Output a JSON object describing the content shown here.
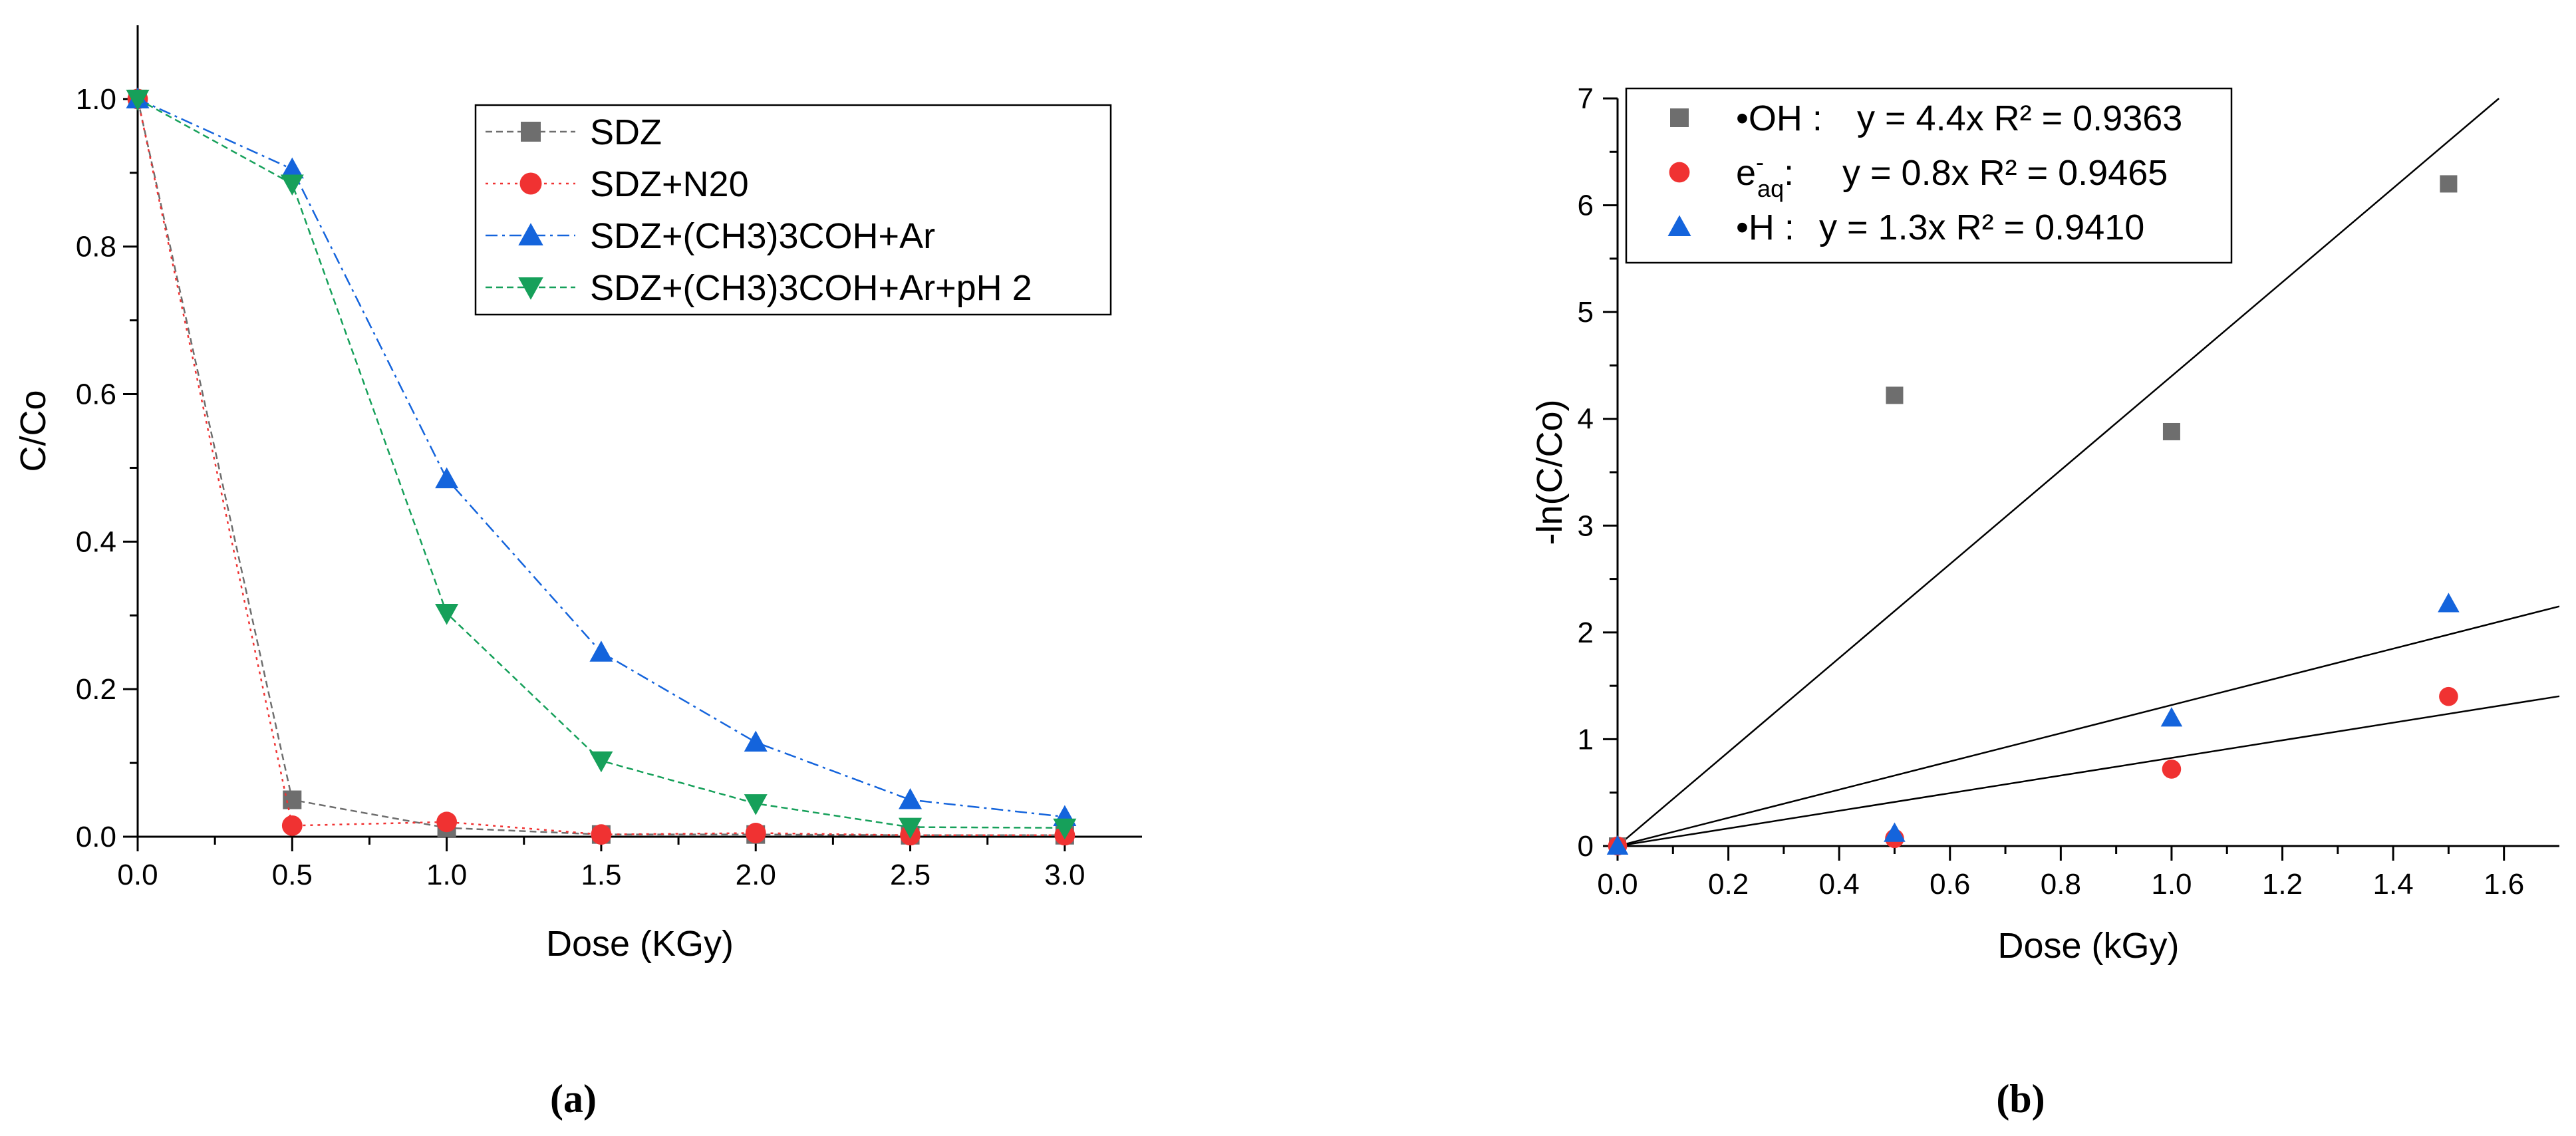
{
  "chart_data": [
    {
      "panel_label": "(a)",
      "type": "line",
      "xlabel": "Dose (KGy)",
      "ylabel": "C/Co",
      "xlim": [
        0,
        3.25
      ],
      "ylim": [
        0,
        1.1
      ],
      "xticks": [
        "0.0",
        "0.5",
        "1.0",
        "1.5",
        "2.0",
        "2.5",
        "3.0"
      ],
      "yticks": [
        "0.0",
        "0.2",
        "0.4",
        "0.6",
        "0.8",
        "1.0"
      ],
      "legend_position": "top-right",
      "series": [
        {
          "name": "SDZ",
          "color": "#6e6e6e",
          "marker": "square",
          "x": [
            0,
            0.5,
            1.0,
            1.5,
            2.0,
            2.5,
            3.0
          ],
          "y": [
            1.0,
            0.05,
            0.012,
            0.003,
            0.003,
            0.002,
            0.002
          ]
        },
        {
          "name": "SDZ+N20",
          "color": "#f03232",
          "marker": "circle",
          "x": [
            0,
            0.5,
            1.0,
            1.5,
            2.0,
            2.5,
            3.0
          ],
          "y": [
            1.0,
            0.015,
            0.02,
            0.003,
            0.005,
            0.002,
            0.002
          ]
        },
        {
          "name": "SDZ+(CH3)3COH+Ar",
          "color": "#1464dc",
          "marker": "triangle-up",
          "x": [
            0,
            0.5,
            1.0,
            1.5,
            2.0,
            2.5,
            3.0
          ],
          "y": [
            1.0,
            0.905,
            0.485,
            0.25,
            0.128,
            0.05,
            0.027
          ]
        },
        {
          "name": "SDZ+(CH3)3COH+Ar+pH 2",
          "color": "#16a05a",
          "marker": "triangle-down",
          "x": [
            0,
            0.5,
            1.0,
            1.5,
            2.0,
            2.5,
            3.0
          ],
          "y": [
            1.0,
            0.885,
            0.303,
            0.103,
            0.045,
            0.013,
            0.012
          ]
        }
      ]
    },
    {
      "panel_label": "(b)",
      "type": "scatter",
      "xlabel": "Dose (kGy)",
      "ylabel": "-ln(C/Co)",
      "xlim": [
        0,
        1.7
      ],
      "ylim": [
        0,
        7
      ],
      "xticks": [
        "0.0",
        "0.2",
        "0.4",
        "0.6",
        "0.8",
        "1.0",
        "1.2",
        "1.4",
        "1.6"
      ],
      "yticks": [
        "0",
        "1",
        "2",
        "3",
        "4",
        "5",
        "6",
        "7"
      ],
      "legend_position": "top-left",
      "series": [
        {
          "legend_prefix": "•OH :",
          "fit_label": "y = 4.4x R² = 0.9363",
          "slope": 4.4,
          "color": "#6e6e6e",
          "marker": "square",
          "x": [
            0,
            0.5,
            1.0,
            1.5
          ],
          "y": [
            0,
            4.22,
            3.88,
            6.2
          ]
        },
        {
          "legend_prefix": "e",
          "legend_super": "-",
          "legend_sub": "aq",
          "legend_colon": ":",
          "fit_label": "y = 0.8x R² = 0.9465",
          "slope": 0.825,
          "color": "#f03232",
          "marker": "circle",
          "x": [
            0,
            0.5,
            1.0,
            1.5
          ],
          "y": [
            0,
            0.07,
            0.72,
            1.4
          ]
        },
        {
          "legend_prefix": "•H :",
          "fit_label": "y = 1.3x R² = 0.9410",
          "slope": 1.32,
          "color": "#1464dc",
          "marker": "triangle-up",
          "x": [
            0,
            0.5,
            1.0,
            1.5
          ],
          "y": [
            0,
            0.12,
            1.2,
            2.27
          ]
        }
      ]
    }
  ]
}
